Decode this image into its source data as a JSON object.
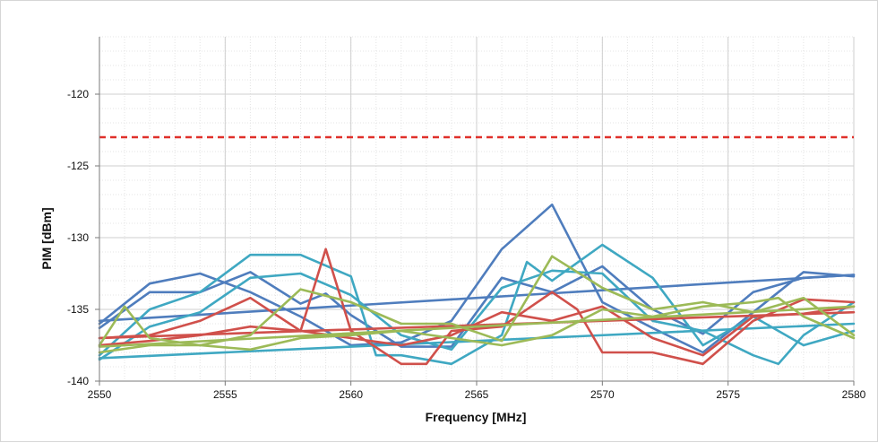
{
  "chart_data": {
    "type": "line",
    "title": "",
    "xlabel": "Frequency [MHz]",
    "ylabel": "PIM [dBm]",
    "xlim": [
      2550,
      2580
    ],
    "ylim": [
      -140,
      -116
    ],
    "x_ticks": [
      2550,
      2555,
      2560,
      2565,
      2570,
      2575,
      2580
    ],
    "y_ticks": [
      -140,
      -135,
      -130,
      -125,
      -120
    ],
    "x_tick_labels": [
      "2550",
      "2555",
      "2560",
      "2565",
      "2570",
      "2575",
      "2580"
    ],
    "y_tick_labels": [
      "-140",
      "-135",
      "-130",
      "-125",
      "-120"
    ],
    "grid": true,
    "legend": "none",
    "limit_line": {
      "y": -123,
      "color": "#e0302a",
      "style": "dashed"
    },
    "series": [
      {
        "color": "#4f7dbd",
        "x": [
          2550,
          2552,
          2554,
          2556,
          2558,
          2560,
          2562,
          2564,
          2566,
          2568,
          2570,
          2572,
          2574,
          2576,
          2578,
          2580
        ],
        "y": [
          -136,
          -133.2,
          -132.5,
          -133.8,
          -135.5,
          -137.5,
          -137.3,
          -135.8,
          -130.8,
          -127.7,
          -134.5,
          -136.3,
          -138,
          -135.2,
          -132.4,
          -132.7
        ]
      },
      {
        "color": "#4f7dbd",
        "x": [
          2550,
          2552,
          2554,
          2556,
          2558,
          2559,
          2560,
          2562,
          2564,
          2566,
          2568,
          2570,
          2572,
          2574,
          2576,
          2578,
          2580
        ],
        "y": [
          -136.3,
          -133.8,
          -133.8,
          -132.4,
          -134.6,
          -133.9,
          -135.4,
          -137.6,
          -137.6,
          -132.8,
          -133.8,
          -132,
          -135,
          -136.7,
          -133.8,
          -132.8,
          -132.6
        ]
      },
      {
        "color": "#4f7dbd",
        "x": [
          2550,
          2580
        ],
        "y": [
          -135.8,
          -132.6
        ]
      },
      {
        "color": "#3fa8c2",
        "x": [
          2550,
          2552,
          2554,
          2556,
          2558,
          2560,
          2561,
          2562,
          2564,
          2566,
          2567,
          2568,
          2570,
          2572,
          2574,
          2576,
          2578,
          2580
        ],
        "y": [
          -138.2,
          -135,
          -133.8,
          -131.2,
          -131.2,
          -132.7,
          -138.2,
          -138.2,
          -138.8,
          -136.8,
          -131.7,
          -133,
          -130.5,
          -132.8,
          -137.5,
          -135.5,
          -137.5,
          -136.5
        ]
      },
      {
        "color": "#3fa8c2",
        "x": [
          2550,
          2552,
          2554,
          2556,
          2558,
          2560,
          2562,
          2564,
          2566,
          2568,
          2570,
          2572,
          2574,
          2576,
          2577,
          2578,
          2580
        ],
        "y": [
          -138.5,
          -136.2,
          -135.2,
          -132.8,
          -132.5,
          -134,
          -136.8,
          -137.8,
          -133.5,
          -132.3,
          -132.5,
          -135.8,
          -136.5,
          -138.2,
          -138.8,
          -136.8,
          -134.5
        ]
      },
      {
        "color": "#3fa8c2",
        "x": [
          2550,
          2580
        ],
        "y": [
          -138.4,
          -136
        ]
      },
      {
        "color": "#d0504b",
        "x": [
          2550,
          2552,
          2554,
          2556,
          2558,
          2559,
          2560,
          2562,
          2563,
          2564,
          2566,
          2568,
          2569,
          2570,
          2572,
          2574,
          2576,
          2578,
          2580
        ],
        "y": [
          -137,
          -136.8,
          -135.8,
          -134.2,
          -136.5,
          -130.8,
          -136.5,
          -138.8,
          -138.8,
          -136.5,
          -136.2,
          -133.8,
          -135,
          -138,
          -138,
          -138.8,
          -135.8,
          -134.3,
          -134.5
        ]
      },
      {
        "color": "#d0504b",
        "x": [
          2550,
          2552,
          2554,
          2556,
          2558,
          2560,
          2562,
          2564,
          2566,
          2568,
          2570,
          2572,
          2574,
          2576,
          2578,
          2580
        ],
        "y": [
          -137.5,
          -137.2,
          -136.8,
          -136.2,
          -136.5,
          -137,
          -137.5,
          -136.8,
          -135.2,
          -135.8,
          -134.8,
          -137,
          -138.2,
          -135.5,
          -135.3,
          -134.8
        ]
      },
      {
        "color": "#d0504b",
        "x": [
          2550,
          2580
        ],
        "y": [
          -137,
          -135.2
        ]
      },
      {
        "color": "#9cba57",
        "x": [
          2550,
          2551,
          2552,
          2554,
          2556,
          2558,
          2560,
          2562,
          2564,
          2566,
          2568,
          2570,
          2572,
          2574,
          2576,
          2578,
          2580
        ],
        "y": [
          -137.5,
          -134.8,
          -137,
          -137.5,
          -136.8,
          -133.6,
          -134.5,
          -136,
          -136,
          -137.2,
          -131.3,
          -133.5,
          -135,
          -134.5,
          -135.2,
          -134.2,
          -136.8
        ]
      },
      {
        "color": "#9cba57",
        "x": [
          2550,
          2552,
          2554,
          2556,
          2558,
          2560,
          2562,
          2564,
          2566,
          2568,
          2570,
          2572,
          2574,
          2576,
          2577,
          2578,
          2580
        ],
        "y": [
          -138,
          -137.5,
          -137.5,
          -137.8,
          -137,
          -136.8,
          -136.5,
          -137,
          -137.5,
          -136.8,
          -135,
          -135.5,
          -134.8,
          -134.5,
          -134.2,
          -135.5,
          -137
        ]
      },
      {
        "color": "#9cba57",
        "x": [
          2550,
          2580
        ],
        "y": [
          -137.6,
          -134.8
        ]
      }
    ]
  }
}
